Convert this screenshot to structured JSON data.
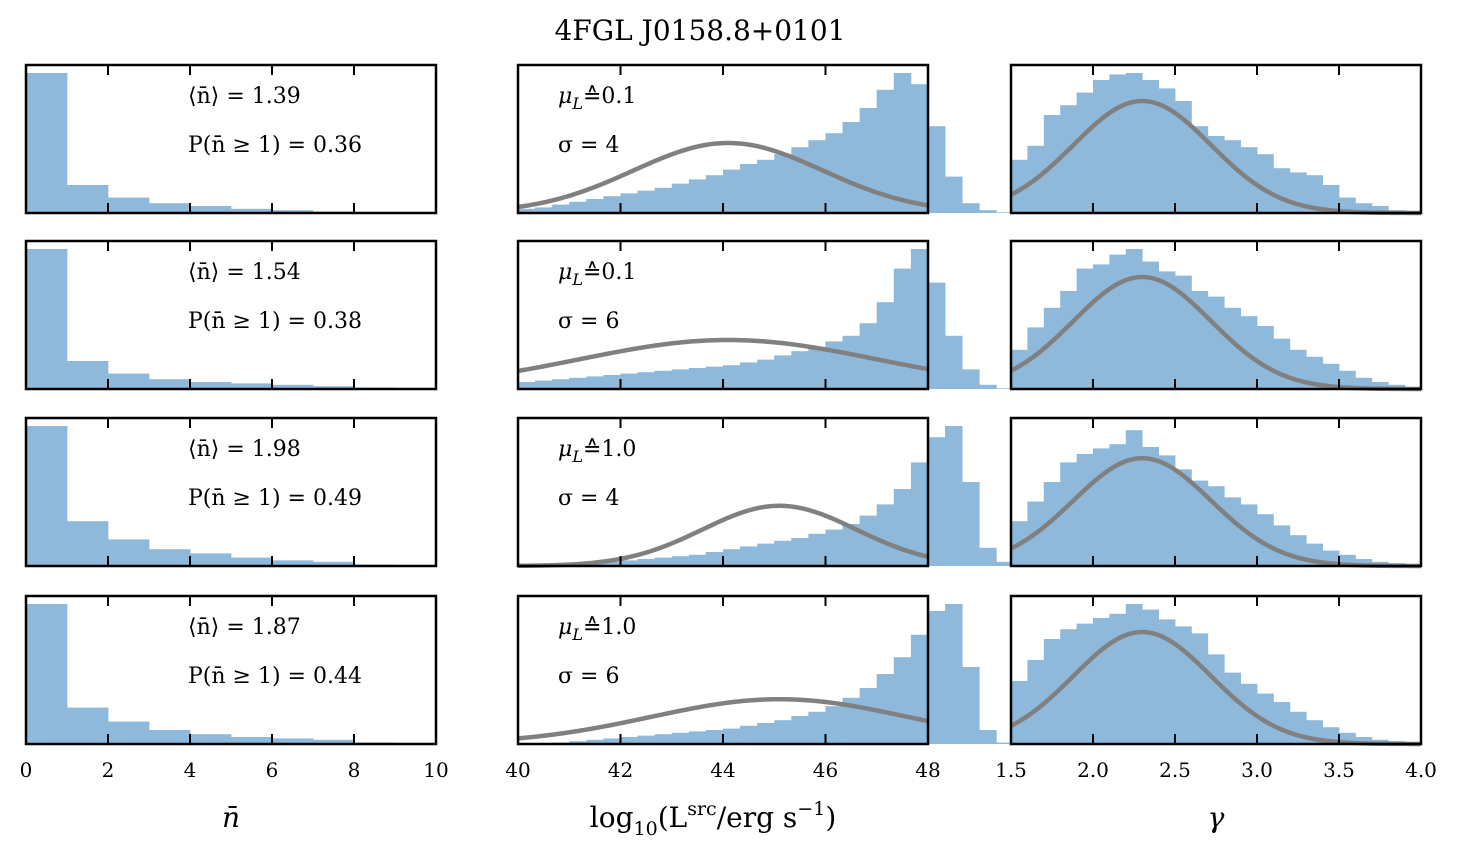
{
  "title": "4FGL J0158.8+0101",
  "colors": {
    "hist": "#8fb9da",
    "curve": "#808080",
    "frame": "#000000"
  },
  "chart_data": [
    {
      "type": "bar",
      "column": "nbar",
      "xlabel": "n̄",
      "xlim": [
        0,
        10
      ],
      "xticks": [
        "0",
        "2",
        "4",
        "6",
        "8",
        "10"
      ],
      "bin_width": 1,
      "bin_start": 0,
      "rows": [
        {
          "mean_label": "⟨n̄⟩ = 1.39",
          "prob_label": "P(n̄ ≥ 1) = 0.36",
          "values": [
            1.0,
            0.2,
            0.11,
            0.07,
            0.05,
            0.03,
            0.02,
            0.01,
            0.003,
            0.001
          ]
        },
        {
          "mean_label": "⟨n̄⟩ = 1.54",
          "prob_label": "P(n̄ ≥ 1) = 0.38",
          "values": [
            1.0,
            0.2,
            0.11,
            0.07,
            0.05,
            0.04,
            0.03,
            0.02,
            0.01,
            0.003
          ]
        },
        {
          "mean_label": "⟨n̄⟩ = 1.98",
          "prob_label": "P(n̄ ≥ 1) = 0.49",
          "values": [
            1.0,
            0.32,
            0.19,
            0.12,
            0.09,
            0.06,
            0.04,
            0.03,
            0.01,
            0.003
          ]
        },
        {
          "mean_label": "⟨n̄⟩ = 1.87",
          "prob_label": "P(n̄ ≥ 1) = 0.44",
          "values": [
            1.0,
            0.26,
            0.16,
            0.1,
            0.07,
            0.05,
            0.04,
            0.03,
            0.01,
            0.003
          ]
        }
      ]
    },
    {
      "type": "bar",
      "column": "luminosity",
      "xlabel": "log10(Lsrc/erg s−1)",
      "xlabel_parts": {
        "log": "log",
        "sub": "10",
        "open": "(L",
        "sup": "src",
        "mid": "/erg s",
        "sup2": "−1",
        "close": ")"
      },
      "xlim": [
        40,
        48
      ],
      "xticks": [
        "40",
        "42",
        "44",
        "46",
        "48"
      ],
      "bin_width": 0.3333,
      "bin_start": 40,
      "rows": [
        {
          "mu_label": "μL ≙ 0.1",
          "mu_value": "0.1",
          "sigma_label": "σ = 4",
          "curve": {
            "mu": 44.1,
            "sigma": 1.85,
            "peak": 0.5
          },
          "values": [
            0.03,
            0.04,
            0.06,
            0.08,
            0.1,
            0.12,
            0.14,
            0.16,
            0.18,
            0.21,
            0.24,
            0.27,
            0.31,
            0.35,
            0.38,
            0.42,
            0.47,
            0.52,
            0.57,
            0.65,
            0.75,
            0.88,
            1.0,
            0.92,
            0.62,
            0.26,
            0.07,
            0.02,
            0.005,
            0,
            0,
            0
          ]
        },
        {
          "mu_label": "μL ≙ 0.1",
          "mu_value": "0.1",
          "sigma_label": "σ = 6",
          "curve": {
            "mu": 44.1,
            "sigma": 2.9,
            "peak": 0.35
          },
          "values": [
            0.05,
            0.06,
            0.07,
            0.08,
            0.09,
            0.1,
            0.11,
            0.12,
            0.13,
            0.14,
            0.15,
            0.16,
            0.17,
            0.19,
            0.21,
            0.24,
            0.27,
            0.3,
            0.34,
            0.38,
            0.47,
            0.62,
            0.86,
            1.0,
            0.76,
            0.38,
            0.14,
            0.03,
            0.005,
            0,
            0,
            0
          ]
        },
        {
          "mu_label": "μL ≙ 1.0",
          "mu_value": "1.0",
          "sigma_label": "σ = 4",
          "curve": {
            "mu": 45.1,
            "sigma": 1.5,
            "peak": 0.43
          },
          "values": [
            0,
            0.005,
            0.01,
            0.015,
            0.02,
            0.03,
            0.04,
            0.05,
            0.06,
            0.07,
            0.08,
            0.1,
            0.12,
            0.14,
            0.16,
            0.18,
            0.2,
            0.23,
            0.26,
            0.3,
            0.36,
            0.44,
            0.55,
            0.74,
            0.92,
            1.0,
            0.6,
            0.13,
            0.03,
            0.005,
            0,
            0
          ]
        },
        {
          "mu_label": "μL ≙ 1.0",
          "mu_value": "1.0",
          "sigma_label": "σ = 6",
          "curve": {
            "mu": 45.1,
            "sigma": 2.5,
            "peak": 0.32
          },
          "values": [
            0,
            0.005,
            0.01,
            0.02,
            0.03,
            0.04,
            0.05,
            0.06,
            0.07,
            0.08,
            0.09,
            0.1,
            0.11,
            0.13,
            0.15,
            0.17,
            0.2,
            0.23,
            0.27,
            0.33,
            0.4,
            0.5,
            0.62,
            0.78,
            0.95,
            1.0,
            0.55,
            0.1,
            0.01,
            0,
            0,
            0
          ]
        }
      ]
    },
    {
      "type": "bar",
      "column": "gamma",
      "xlabel": "γ",
      "xlim": [
        1.5,
        4.0
      ],
      "xticks": [
        "1.5",
        "2.0",
        "2.5",
        "3.0",
        "3.5",
        "4.0"
      ],
      "bin_width": 0.1,
      "bin_start": 1.5,
      "rows": [
        {
          "curve": {
            "mu": 2.3,
            "sigma": 0.42,
            "peak": 0.8
          },
          "values": [
            0.38,
            0.48,
            0.7,
            0.77,
            0.86,
            0.95,
            0.99,
            1.0,
            0.95,
            0.89,
            0.8,
            0.62,
            0.55,
            0.52,
            0.47,
            0.42,
            0.32,
            0.29,
            0.27,
            0.2,
            0.11,
            0.07,
            0.05,
            0.02,
            0.01
          ]
        },
        {
          "curve": {
            "mu": 2.3,
            "sigma": 0.42,
            "peak": 0.8
          },
          "values": [
            0.28,
            0.44,
            0.58,
            0.7,
            0.86,
            0.89,
            0.96,
            1.0,
            0.91,
            0.84,
            0.81,
            0.7,
            0.66,
            0.58,
            0.52,
            0.45,
            0.36,
            0.28,
            0.23,
            0.18,
            0.13,
            0.08,
            0.05,
            0.03,
            0.01
          ]
        },
        {
          "curve": {
            "mu": 2.3,
            "sigma": 0.42,
            "peak": 0.77
          },
          "values": [
            0.32,
            0.46,
            0.6,
            0.74,
            0.8,
            0.84,
            0.87,
            0.97,
            0.85,
            0.79,
            0.69,
            0.61,
            0.57,
            0.49,
            0.44,
            0.37,
            0.29,
            0.22,
            0.16,
            0.11,
            0.08,
            0.05,
            0.03,
            0.02,
            0.01
          ]
        },
        {
          "curve": {
            "mu": 2.3,
            "sigma": 0.42,
            "peak": 0.8
          },
          "values": [
            0.45,
            0.6,
            0.75,
            0.82,
            0.86,
            0.9,
            0.93,
            1.0,
            0.96,
            0.89,
            0.84,
            0.79,
            0.64,
            0.51,
            0.43,
            0.36,
            0.3,
            0.23,
            0.17,
            0.12,
            0.08,
            0.05,
            0.03,
            0.02,
            0.01
          ]
        }
      ]
    }
  ]
}
